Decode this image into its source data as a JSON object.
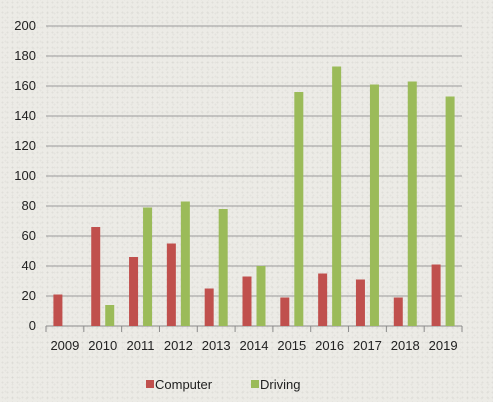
{
  "chart_data": {
    "type": "bar",
    "categories": [
      "2009",
      "2010",
      "2011",
      "2012",
      "2013",
      "2014",
      "2015",
      "2016",
      "2017",
      "2018",
      "2019"
    ],
    "series": [
      {
        "name": "Computer",
        "color": "#c0504d",
        "values": [
          21,
          66,
          46,
          55,
          25,
          33,
          19,
          35,
          31,
          19,
          41
        ]
      },
      {
        "name": "Driving",
        "color": "#9bbb59",
        "values": [
          0,
          14,
          79,
          83,
          78,
          40,
          156,
          173,
          161,
          163,
          153
        ]
      }
    ],
    "ylim": [
      0,
      200
    ],
    "yticks": [
      0,
      20,
      40,
      60,
      80,
      100,
      120,
      140,
      160,
      180,
      200
    ],
    "grid": true,
    "legend_position": "bottom"
  }
}
